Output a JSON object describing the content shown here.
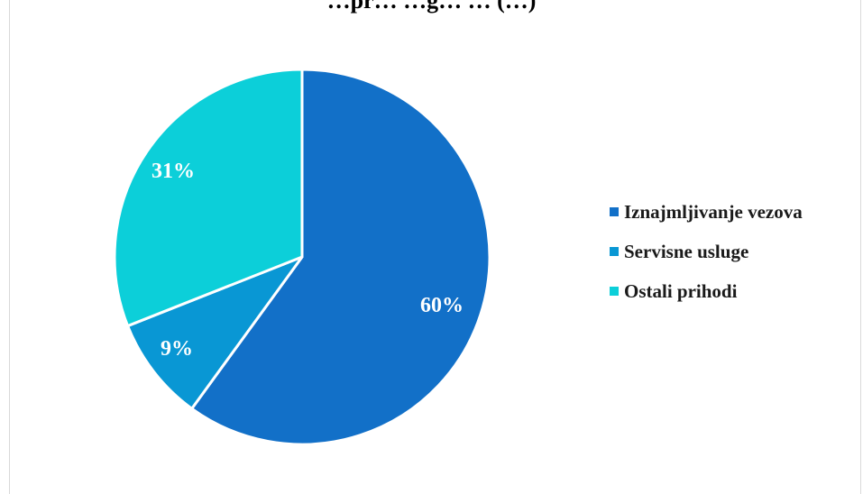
{
  "chart_data": {
    "type": "pie",
    "title": "…pr… …g… … (…)",
    "slices": [
      {
        "label": "Iznajmljivanje vezova",
        "value": 60,
        "display": "60%",
        "color": "#1270c8"
      },
      {
        "label": "Servisne usluge",
        "value": 9,
        "display": "9%",
        "color": "#0997d4"
      },
      {
        "label": "Ostali prihodi",
        "value": 31,
        "display": "31%",
        "color": "#0ccfd9"
      }
    ],
    "legend_position": "right",
    "start_angle_deg": 0,
    "direction": "clockwise"
  }
}
